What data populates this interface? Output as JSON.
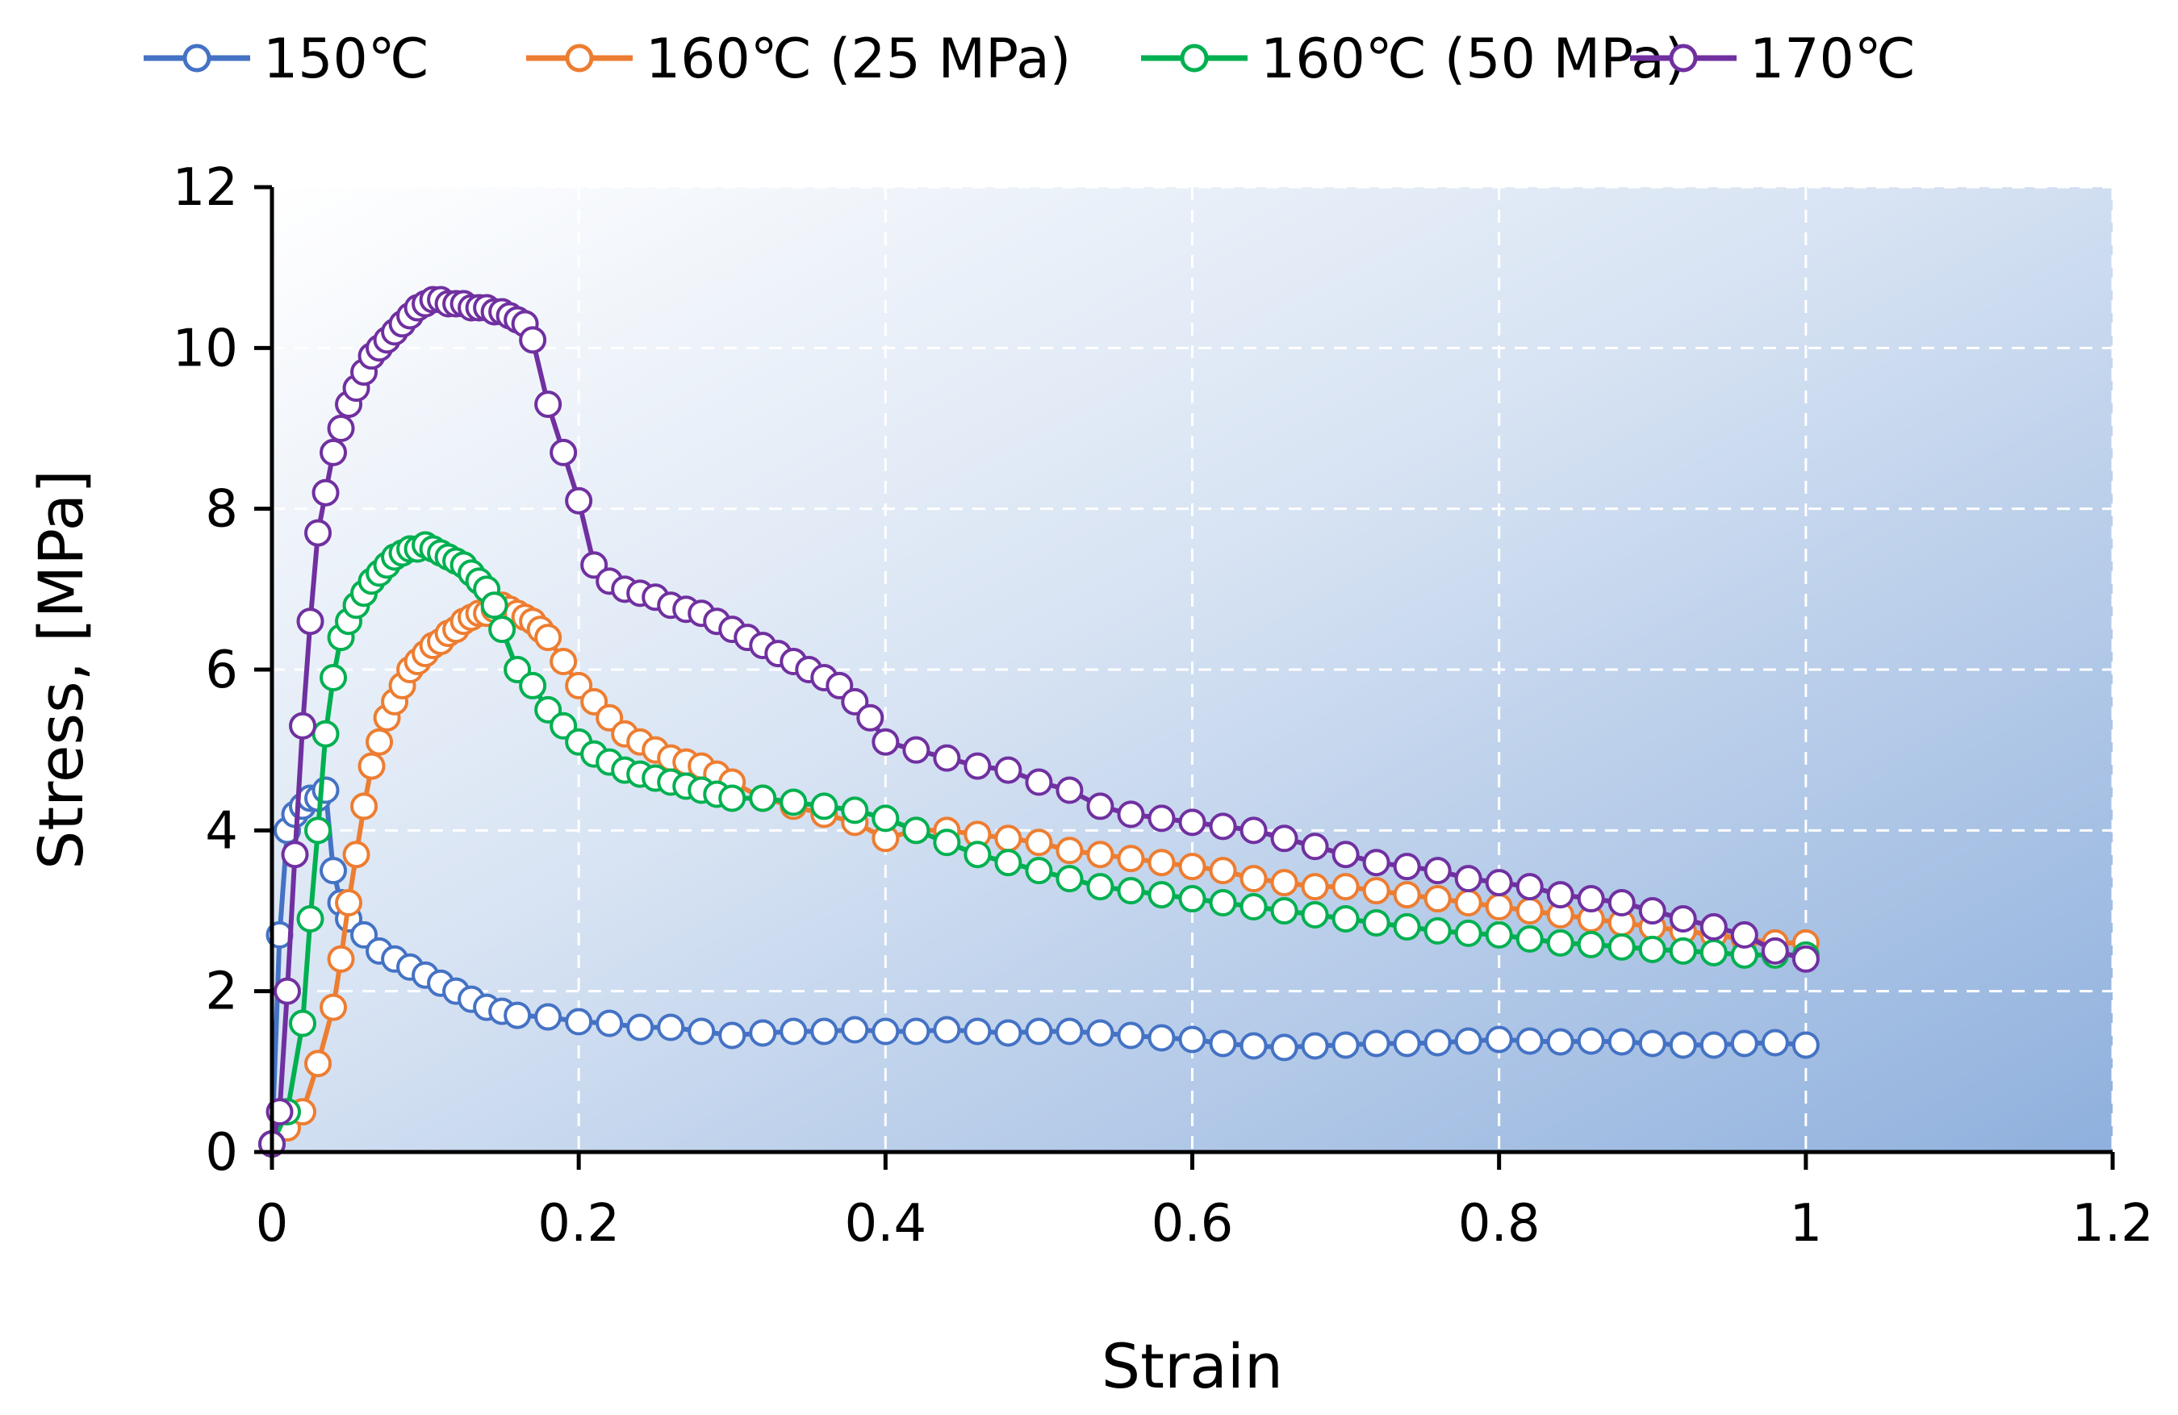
{
  "chart_data": {
    "type": "scatter",
    "title": "",
    "xlabel": "Strain",
    "ylabel": "Stress,  [MPa]",
    "xlim": [
      0,
      1.2
    ],
    "ylim": [
      0,
      12
    ],
    "xticks": [
      0,
      0.2,
      0.4,
      0.6,
      0.8,
      1,
      1.2
    ],
    "xtick_labels": [
      "0",
      "0.2",
      "0.4",
      "0.6",
      "0.8",
      "1",
      "1.2"
    ],
    "yticks": [
      0,
      2,
      4,
      6,
      8,
      10,
      12
    ],
    "ytick_labels": [
      "0",
      "2",
      "4",
      "6",
      "8",
      "10",
      "12"
    ],
    "grid": true,
    "legend_position": "top",
    "marker": "open-circle",
    "series": [
      {
        "name": "150℃",
        "color": "#4472C4",
        "x": [
          0,
          0.005,
          0.01,
          0.015,
          0.02,
          0.025,
          0.03,
          0.035,
          0.04,
          0.045,
          0.05,
          0.06,
          0.07,
          0.08,
          0.09,
          0.1,
          0.11,
          0.12,
          0.13,
          0.14,
          0.15,
          0.16,
          0.18,
          0.2,
          0.22,
          0.24,
          0.26,
          0.28,
          0.3,
          0.32,
          0.34,
          0.36,
          0.38,
          0.4,
          0.42,
          0.44,
          0.46,
          0.48,
          0.5,
          0.52,
          0.54,
          0.56,
          0.58,
          0.6,
          0.62,
          0.64,
          0.66,
          0.68,
          0.7,
          0.72,
          0.74,
          0.76,
          0.78,
          0.8,
          0.82,
          0.84,
          0.86,
          0.88,
          0.9,
          0.92,
          0.94,
          0.96,
          0.98,
          1.0
        ],
        "y": [
          0.1,
          2.7,
          4.0,
          4.2,
          4.3,
          4.4,
          4.4,
          4.5,
          3.5,
          3.1,
          2.9,
          2.7,
          2.5,
          2.4,
          2.3,
          2.2,
          2.1,
          2.0,
          1.9,
          1.8,
          1.75,
          1.7,
          1.68,
          1.62,
          1.6,
          1.55,
          1.55,
          1.5,
          1.45,
          1.48,
          1.5,
          1.5,
          1.52,
          1.5,
          1.5,
          1.52,
          1.5,
          1.48,
          1.5,
          1.5,
          1.48,
          1.45,
          1.42,
          1.4,
          1.35,
          1.32,
          1.3,
          1.32,
          1.33,
          1.35,
          1.35,
          1.36,
          1.38,
          1.4,
          1.38,
          1.37,
          1.38,
          1.37,
          1.35,
          1.33,
          1.33,
          1.35,
          1.36,
          1.33
        ]
      },
      {
        "name": "160℃ (25 MPa)",
        "color": "#ED7D31",
        "x": [
          0,
          0.01,
          0.02,
          0.03,
          0.04,
          0.045,
          0.05,
          0.055,
          0.06,
          0.065,
          0.07,
          0.075,
          0.08,
          0.085,
          0.09,
          0.095,
          0.1,
          0.105,
          0.11,
          0.115,
          0.12,
          0.125,
          0.13,
          0.135,
          0.14,
          0.145,
          0.15,
          0.155,
          0.16,
          0.165,
          0.17,
          0.175,
          0.18,
          0.19,
          0.2,
          0.21,
          0.22,
          0.23,
          0.24,
          0.25,
          0.26,
          0.27,
          0.28,
          0.29,
          0.3,
          0.32,
          0.34,
          0.36,
          0.38,
          0.4,
          0.42,
          0.44,
          0.46,
          0.48,
          0.5,
          0.52,
          0.54,
          0.56,
          0.58,
          0.6,
          0.62,
          0.64,
          0.66,
          0.68,
          0.7,
          0.72,
          0.74,
          0.76,
          0.78,
          0.8,
          0.82,
          0.84,
          0.86,
          0.88,
          0.9,
          0.92,
          0.94,
          0.96,
          0.98,
          1.0
        ],
        "y": [
          0.1,
          0.3,
          0.5,
          1.1,
          1.8,
          2.4,
          3.1,
          3.7,
          4.3,
          4.8,
          5.1,
          5.4,
          5.6,
          5.8,
          6.0,
          6.1,
          6.2,
          6.3,
          6.35,
          6.45,
          6.5,
          6.6,
          6.65,
          6.7,
          6.7,
          6.75,
          6.8,
          6.75,
          6.7,
          6.65,
          6.6,
          6.5,
          6.4,
          6.1,
          5.8,
          5.6,
          5.4,
          5.2,
          5.1,
          5.0,
          4.9,
          4.85,
          4.8,
          4.7,
          4.6,
          4.4,
          4.3,
          4.2,
          4.1,
          3.9,
          4.0,
          4.0,
          3.95,
          3.9,
          3.85,
          3.75,
          3.7,
          3.65,
          3.6,
          3.55,
          3.5,
          3.4,
          3.35,
          3.3,
          3.3,
          3.25,
          3.2,
          3.15,
          3.1,
          3.05,
          3.0,
          2.95,
          2.9,
          2.85,
          2.8,
          2.75,
          2.7,
          2.65,
          2.6,
          2.6
        ]
      },
      {
        "name": "160℃ (50 MPa)",
        "color": "#00B050",
        "x": [
          0,
          0.01,
          0.02,
          0.025,
          0.03,
          0.035,
          0.04,
          0.045,
          0.05,
          0.055,
          0.06,
          0.065,
          0.07,
          0.075,
          0.08,
          0.085,
          0.09,
          0.095,
          0.1,
          0.105,
          0.11,
          0.115,
          0.12,
          0.125,
          0.13,
          0.135,
          0.14,
          0.145,
          0.15,
          0.16,
          0.17,
          0.18,
          0.19,
          0.2,
          0.21,
          0.22,
          0.23,
          0.24,
          0.25,
          0.26,
          0.27,
          0.28,
          0.29,
          0.3,
          0.32,
          0.34,
          0.36,
          0.38,
          0.4,
          0.42,
          0.44,
          0.46,
          0.48,
          0.5,
          0.52,
          0.54,
          0.56,
          0.58,
          0.6,
          0.62,
          0.64,
          0.66,
          0.68,
          0.7,
          0.72,
          0.74,
          0.76,
          0.78,
          0.8,
          0.82,
          0.84,
          0.86,
          0.88,
          0.9,
          0.92,
          0.94,
          0.96,
          0.98,
          1.0
        ],
        "y": [
          0.1,
          0.5,
          1.6,
          2.9,
          4.0,
          5.2,
          5.9,
          6.4,
          6.6,
          6.8,
          6.95,
          7.1,
          7.2,
          7.3,
          7.4,
          7.45,
          7.5,
          7.5,
          7.55,
          7.5,
          7.45,
          7.4,
          7.35,
          7.3,
          7.2,
          7.1,
          7.0,
          6.8,
          6.5,
          6.0,
          5.8,
          5.5,
          5.3,
          5.1,
          4.95,
          4.85,
          4.75,
          4.7,
          4.65,
          4.6,
          4.55,
          4.5,
          4.45,
          4.4,
          4.4,
          4.35,
          4.3,
          4.25,
          4.15,
          4.0,
          3.85,
          3.7,
          3.6,
          3.5,
          3.4,
          3.3,
          3.25,
          3.2,
          3.15,
          3.1,
          3.05,
          3.0,
          2.95,
          2.9,
          2.85,
          2.8,
          2.75,
          2.72,
          2.7,
          2.65,
          2.6,
          2.58,
          2.55,
          2.52,
          2.5,
          2.48,
          2.45,
          2.45,
          2.45
        ]
      },
      {
        "name": "170℃",
        "color": "#7030A0",
        "x": [
          0,
          0.005,
          0.01,
          0.015,
          0.02,
          0.025,
          0.03,
          0.035,
          0.04,
          0.045,
          0.05,
          0.055,
          0.06,
          0.065,
          0.07,
          0.075,
          0.08,
          0.085,
          0.09,
          0.095,
          0.1,
          0.105,
          0.11,
          0.115,
          0.12,
          0.125,
          0.13,
          0.135,
          0.14,
          0.145,
          0.15,
          0.155,
          0.16,
          0.165,
          0.17,
          0.18,
          0.19,
          0.2,
          0.21,
          0.22,
          0.23,
          0.24,
          0.25,
          0.26,
          0.27,
          0.28,
          0.29,
          0.3,
          0.31,
          0.32,
          0.33,
          0.34,
          0.35,
          0.36,
          0.37,
          0.38,
          0.39,
          0.4,
          0.42,
          0.44,
          0.46,
          0.48,
          0.5,
          0.52,
          0.54,
          0.56,
          0.58,
          0.6,
          0.62,
          0.64,
          0.66,
          0.68,
          0.7,
          0.72,
          0.74,
          0.76,
          0.78,
          0.8,
          0.82,
          0.84,
          0.86,
          0.88,
          0.9,
          0.92,
          0.94,
          0.96,
          0.98,
          1.0
        ],
        "y": [
          0.1,
          0.5,
          2.0,
          3.7,
          5.3,
          6.6,
          7.7,
          8.2,
          8.7,
          9.0,
          9.3,
          9.5,
          9.7,
          9.9,
          10.0,
          10.1,
          10.2,
          10.3,
          10.4,
          10.5,
          10.55,
          10.6,
          10.6,
          10.55,
          10.55,
          10.55,
          10.5,
          10.5,
          10.5,
          10.45,
          10.45,
          10.4,
          10.35,
          10.3,
          10.1,
          9.3,
          8.7,
          8.1,
          7.3,
          7.1,
          7.0,
          6.95,
          6.9,
          6.8,
          6.75,
          6.7,
          6.6,
          6.5,
          6.4,
          6.3,
          6.2,
          6.1,
          6.0,
          5.9,
          5.8,
          5.6,
          5.4,
          5.1,
          5.0,
          4.9,
          4.8,
          4.75,
          4.6,
          4.5,
          4.3,
          4.2,
          4.15,
          4.1,
          4.05,
          4.0,
          3.9,
          3.8,
          3.7,
          3.6,
          3.55,
          3.5,
          3.4,
          3.35,
          3.3,
          3.2,
          3.15,
          3.1,
          3.0,
          2.9,
          2.8,
          2.7,
          2.5,
          2.4
        ]
      }
    ]
  }
}
